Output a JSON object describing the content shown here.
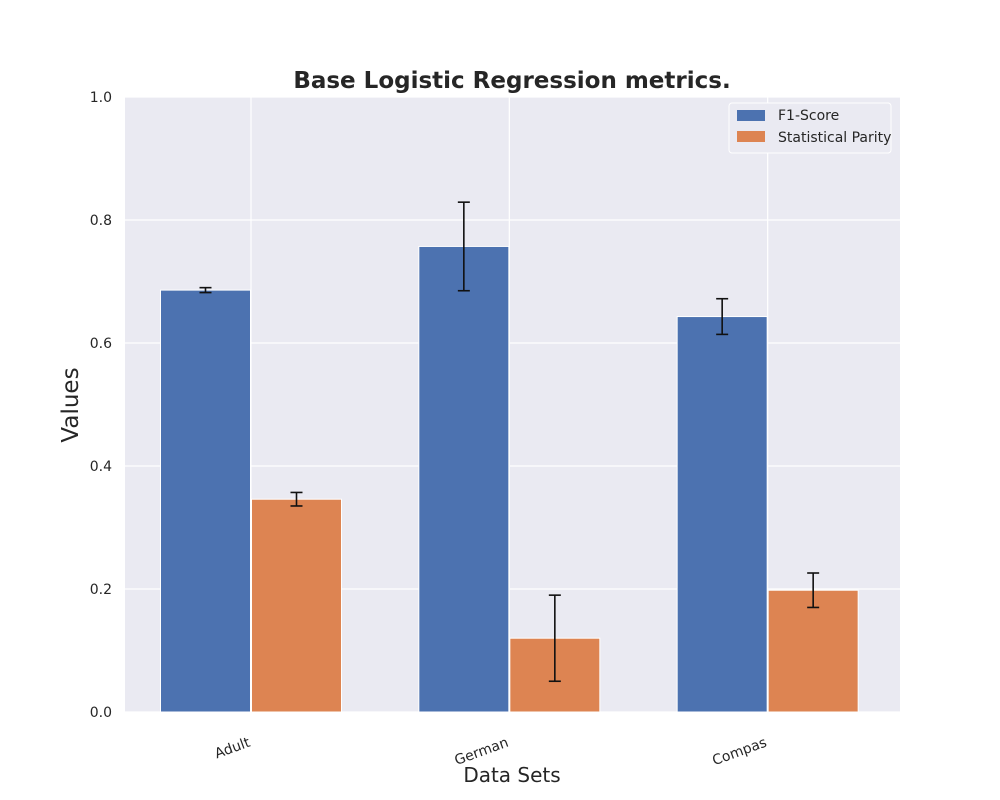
{
  "chart_data": {
    "type": "bar",
    "title": "Base Logistic Regression metrics.",
    "xlabel": "Data Sets",
    "ylabel": "Values",
    "categories": [
      "Adult",
      "German",
      "Compas"
    ],
    "ylim": [
      0,
      1
    ],
    "yticks": [
      "0.0",
      "0.2",
      "0.4",
      "0.6",
      "0.8",
      "1.0"
    ],
    "grid": true,
    "legend_position": "top-right",
    "series": [
      {
        "name": "F1-Score",
        "color": "#4c72b0",
        "values": [
          0.686,
          0.757,
          0.643
        ],
        "errors": [
          0.004,
          0.072,
          0.029
        ]
      },
      {
        "name": "Statistical Parity",
        "color": "#dd8452",
        "values": [
          0.346,
          0.12,
          0.198
        ],
        "errors": [
          0.011,
          0.07,
          0.028
        ]
      }
    ]
  }
}
